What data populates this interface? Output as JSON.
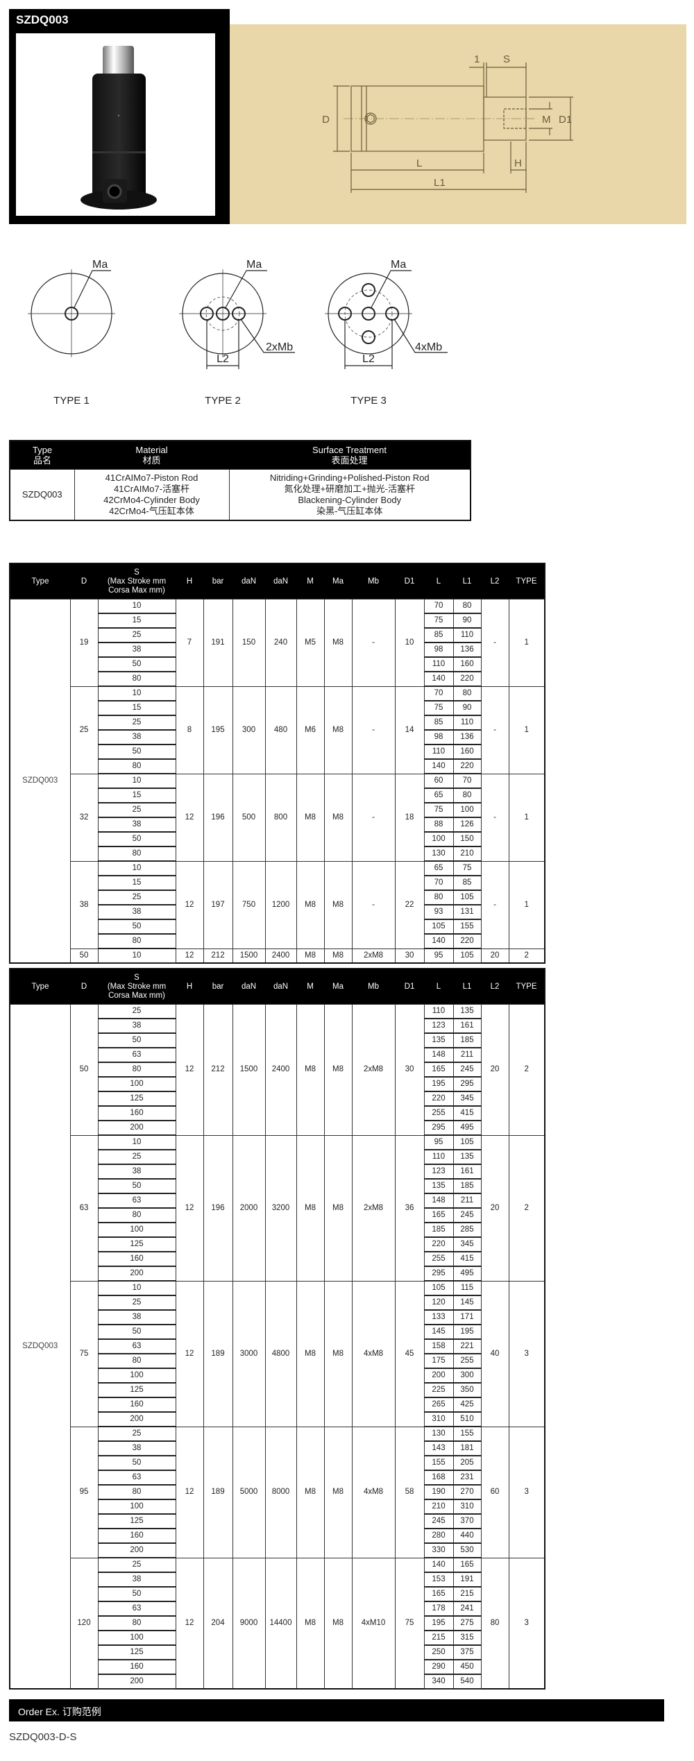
{
  "header": {
    "title": "SZDQ003"
  },
  "drawing": {
    "dims": {
      "one": "1",
      "S": "S",
      "D": "D",
      "M": "M",
      "D1": "D1",
      "L": "L",
      "H": "H",
      "L1": "L1"
    },
    "colors": {
      "panel": "#e9d7a9",
      "header": "#000000"
    }
  },
  "types": [
    {
      "label": "TYPE 1",
      "ma": "Ma",
      "mb": "",
      "l2": ""
    },
    {
      "label": "TYPE 2",
      "ma": "Ma",
      "mb": "2xMb",
      "l2": "L2"
    },
    {
      "label": "TYPE 3",
      "ma": "Ma",
      "mb": "4xMb",
      "l2": "L2"
    }
  ],
  "material": {
    "headers": [
      {
        "en": "Type",
        "zh": "品名"
      },
      {
        "en": "Material",
        "zh": "材质"
      },
      {
        "en": "Surface Treatment",
        "zh": "表面处理"
      }
    ],
    "type": "SZDQ003",
    "material_lines": [
      "41CrAIMo7-Piston Rod",
      "41CrAIMo7-活塞杆",
      "42CrMo4-Cylinder Body",
      "42CrMo4-气压缸本体"
    ],
    "surface_lines": [
      "Nitriding+Grinding+Polished-Piston Rod",
      "氮化处理+研磨加工+抛光-活塞杆",
      "Blackening-Cylinder Body",
      "染黑-气压缸本体"
    ]
  },
  "spec_headers": {
    "type": "Type",
    "D": "D",
    "S": "S",
    "S_sub1": "(Max Stroke mm",
    "S_sub2": "Corsa Max mm)",
    "H": "H",
    "bar": "bar",
    "daN1": "daN",
    "daN2": "daN",
    "M": "M",
    "Ma": "Ma",
    "Mb": "Mb",
    "D1": "D1",
    "L": "L",
    "L1": "L1",
    "L2": "L2",
    "TYPE": "TYPE"
  },
  "spec_tables": [
    {
      "type": "SZDQ003",
      "groups": [
        {
          "D": "19",
          "S": [
            "10",
            "15",
            "25",
            "38",
            "50",
            "80"
          ],
          "H": "7",
          "bar": "191",
          "daN1": "150",
          "daN2": "240",
          "M": "M5",
          "Ma": "M8",
          "Mb": "-",
          "D1": "10",
          "L": [
            "70",
            "75",
            "85",
            "98",
            "110",
            "140"
          ],
          "L1": [
            "80",
            "90",
            "110",
            "136",
            "160",
            "220"
          ],
          "L2": "-",
          "TYPE": "1"
        },
        {
          "D": "25",
          "S": [
            "10",
            "15",
            "25",
            "38",
            "50",
            "80"
          ],
          "H": "8",
          "bar": "195",
          "daN1": "300",
          "daN2": "480",
          "M": "M6",
          "Ma": "M8",
          "Mb": "-",
          "D1": "14",
          "L": [
            "70",
            "75",
            "85",
            "98",
            "110",
            "140"
          ],
          "L1": [
            "80",
            "90",
            "110",
            "136",
            "160",
            "220"
          ],
          "L2": "-",
          "TYPE": "1"
        },
        {
          "D": "32",
          "S": [
            "10",
            "15",
            "25",
            "38",
            "50",
            "80"
          ],
          "H": "12",
          "bar": "196",
          "daN1": "500",
          "daN2": "800",
          "M": "M8",
          "Ma": "M8",
          "Mb": "-",
          "D1": "18",
          "L": [
            "60",
            "65",
            "75",
            "88",
            "100",
            "130"
          ],
          "L1": [
            "70",
            "80",
            "100",
            "126",
            "150",
            "210"
          ],
          "L2": "-",
          "TYPE": "1"
        },
        {
          "D": "38",
          "S": [
            "10",
            "15",
            "25",
            "38",
            "50",
            "80"
          ],
          "H": "12",
          "bar": "197",
          "daN1": "750",
          "daN2": "1200",
          "M": "M8",
          "Ma": "M8",
          "Mb": "-",
          "D1": "22",
          "L": [
            "65",
            "70",
            "80",
            "93",
            "105",
            "140"
          ],
          "L1": [
            "75",
            "85",
            "105",
            "131",
            "155",
            "220"
          ],
          "L2": "-",
          "TYPE": "1"
        },
        {
          "D": "50",
          "S": [
            "10"
          ],
          "H": "12",
          "bar": "212",
          "daN1": "1500",
          "daN2": "2400",
          "M": "M8",
          "Ma": "M8",
          "Mb": "2xM8",
          "D1": "30",
          "L": [
            "95"
          ],
          "L1": [
            "105"
          ],
          "L2": "20",
          "TYPE": "2"
        }
      ]
    },
    {
      "type": "SZDQ003",
      "groups": [
        {
          "D": "50",
          "S": [
            "25",
            "38",
            "50",
            "63",
            "80",
            "100",
            "125",
            "160",
            "200"
          ],
          "H": "12",
          "bar": "212",
          "daN1": "1500",
          "daN2": "2400",
          "M": "M8",
          "Ma": "M8",
          "Mb": "2xM8",
          "D1": "30",
          "L": [
            "110",
            "123",
            "135",
            "148",
            "165",
            "195",
            "220",
            "255",
            "295"
          ],
          "L1": [
            "135",
            "161",
            "185",
            "211",
            "245",
            "295",
            "345",
            "415",
            "495"
          ],
          "L2": "20",
          "TYPE": "2"
        },
        {
          "D": "63",
          "S": [
            "10",
            "25",
            "38",
            "50",
            "63",
            "80",
            "100",
            "125",
            "160",
            "200"
          ],
          "H": "12",
          "bar": "196",
          "daN1": "2000",
          "daN2": "3200",
          "M": "M8",
          "Ma": "M8",
          "Mb": "2xM8",
          "D1": "36",
          "L": [
            "95",
            "110",
            "123",
            "135",
            "148",
            "165",
            "185",
            "220",
            "255",
            "295"
          ],
          "L1": [
            "105",
            "135",
            "161",
            "185",
            "211",
            "245",
            "285",
            "345",
            "415",
            "495"
          ],
          "L2": "20",
          "TYPE": "2"
        },
        {
          "D": "75",
          "S": [
            "10",
            "25",
            "38",
            "50",
            "63",
            "80",
            "100",
            "125",
            "160",
            "200"
          ],
          "H": "12",
          "bar": "189",
          "daN1": "3000",
          "daN2": "4800",
          "M": "M8",
          "Ma": "M8",
          "Mb": "4xM8",
          "D1": "45",
          "L": [
            "105",
            "120",
            "133",
            "145",
            "158",
            "175",
            "200",
            "225",
            "265",
            "310"
          ],
          "L1": [
            "115",
            "145",
            "171",
            "195",
            "221",
            "255",
            "300",
            "350",
            "425",
            "510"
          ],
          "L2": "40",
          "TYPE": "3"
        },
        {
          "D": "95",
          "S": [
            "25",
            "38",
            "50",
            "63",
            "80",
            "100",
            "125",
            "160",
            "200"
          ],
          "H": "12",
          "bar": "189",
          "daN1": "5000",
          "daN2": "8000",
          "M": "M8",
          "Ma": "M8",
          "Mb": "4xM8",
          "D1": "58",
          "L": [
            "130",
            "143",
            "155",
            "168",
            "190",
            "210",
            "245",
            "280",
            "330"
          ],
          "L1": [
            "155",
            "181",
            "205",
            "231",
            "270",
            "310",
            "370",
            "440",
            "530"
          ],
          "L2": "60",
          "TYPE": "3"
        },
        {
          "D": "120",
          "S": [
            "25",
            "38",
            "50",
            "63",
            "80",
            "100",
            "125",
            "160",
            "200"
          ],
          "H": "12",
          "bar": "204",
          "daN1": "9000",
          "daN2": "14400",
          "M": "M8",
          "Ma": "M8",
          "Mb": "4xM10",
          "D1": "75",
          "L": [
            "140",
            "153",
            "165",
            "178",
            "195",
            "215",
            "250",
            "290",
            "340"
          ],
          "L1": [
            "165",
            "191",
            "215",
            "241",
            "275",
            "315",
            "375",
            "450",
            "540"
          ],
          "L2": "80",
          "TYPE": "3"
        }
      ]
    }
  ],
  "order": {
    "label": "Order Ex. 订购范例",
    "example": "SZDQ003-D-S"
  }
}
